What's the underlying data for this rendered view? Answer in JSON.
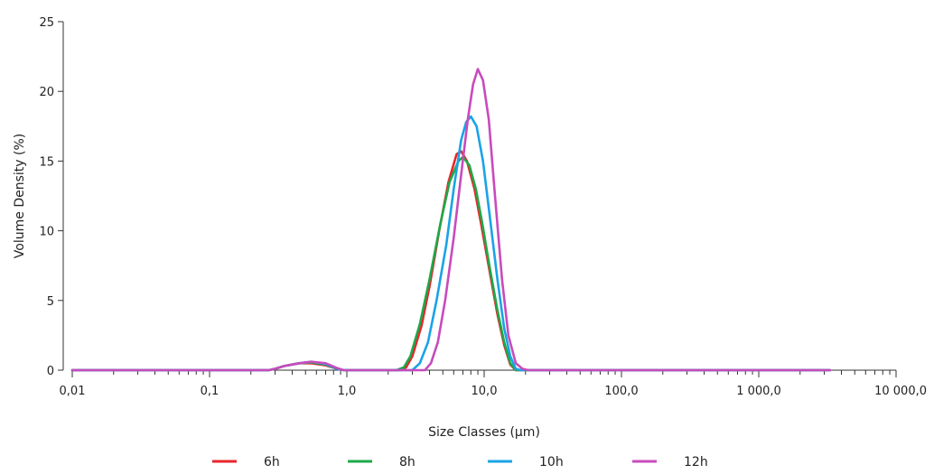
{
  "chart_data": {
    "type": "line",
    "xlabel": "Size Classes (µm)",
    "ylabel": "Volume Density (%)",
    "x_scale": "log",
    "xlim": [
      0.01,
      10000
    ],
    "ylim": [
      0,
      25
    ],
    "x_ticks": [
      {
        "value": 0.01,
        "label": "0,01"
      },
      {
        "value": 0.1,
        "label": "0,1"
      },
      {
        "value": 1,
        "label": "1,0"
      },
      {
        "value": 10,
        "label": "10,0"
      },
      {
        "value": 100,
        "label": "100,0"
      },
      {
        "value": 1000,
        "label": "1 000,0"
      },
      {
        "value": 10000,
        "label": "10 000,0"
      }
    ],
    "y_ticks": [
      {
        "value": 0,
        "label": "0"
      },
      {
        "value": 5,
        "label": "5"
      },
      {
        "value": 10,
        "label": "10"
      },
      {
        "value": 15,
        "label": "15"
      },
      {
        "value": 20,
        "label": "20"
      },
      {
        "value": 25,
        "label": "25"
      }
    ],
    "grid": false,
    "legend_position": "bottom",
    "series": [
      {
        "name": "6h",
        "color": "#e8262b",
        "points": [
          [
            0.01,
            0
          ],
          [
            0.27,
            0
          ],
          [
            0.3,
            0.1
          ],
          [
            0.35,
            0.3
          ],
          [
            0.45,
            0.5
          ],
          [
            0.55,
            0.5
          ],
          [
            0.7,
            0.35
          ],
          [
            0.85,
            0.1
          ],
          [
            0.95,
            0
          ],
          [
            2.4,
            0
          ],
          [
            2.7,
            0.2
          ],
          [
            3.0,
            1.0
          ],
          [
            3.5,
            3.2
          ],
          [
            4.0,
            6.0
          ],
          [
            4.7,
            10.0
          ],
          [
            5.5,
            13.5
          ],
          [
            6.3,
            15.5
          ],
          [
            6.8,
            15.7
          ],
          [
            7.5,
            15.0
          ],
          [
            8.5,
            13.0
          ],
          [
            9.5,
            10.5
          ],
          [
            11,
            7.0
          ],
          [
            12.5,
            4.0
          ],
          [
            14,
            1.8
          ],
          [
            15.5,
            0.4
          ],
          [
            17,
            0
          ],
          [
            3300,
            0
          ]
        ]
      },
      {
        "name": "8h",
        "color": "#1ea84a",
        "points": [
          [
            0.01,
            0
          ],
          [
            0.27,
            0
          ],
          [
            0.3,
            0.1
          ],
          [
            0.35,
            0.3
          ],
          [
            0.45,
            0.5
          ],
          [
            0.55,
            0.55
          ],
          [
            0.7,
            0.4
          ],
          [
            0.85,
            0.1
          ],
          [
            0.95,
            0
          ],
          [
            2.3,
            0
          ],
          [
            2.6,
            0.2
          ],
          [
            2.9,
            1.0
          ],
          [
            3.4,
            3.3
          ],
          [
            4.0,
            6.5
          ],
          [
            4.8,
            10.5
          ],
          [
            5.6,
            13.5
          ],
          [
            6.5,
            15.0
          ],
          [
            7.0,
            15.3
          ],
          [
            7.8,
            14.7
          ],
          [
            8.7,
            13.0
          ],
          [
            9.7,
            10.5
          ],
          [
            11,
            7.3
          ],
          [
            12.5,
            4.3
          ],
          [
            14,
            2.0
          ],
          [
            15.5,
            0.5
          ],
          [
            17,
            0
          ],
          [
            3300,
            0
          ]
        ]
      },
      {
        "name": "10h",
        "color": "#1aa3e6",
        "points": [
          [
            0.01,
            0
          ],
          [
            0.27,
            0
          ],
          [
            0.3,
            0.1
          ],
          [
            0.35,
            0.3
          ],
          [
            0.45,
            0.5
          ],
          [
            0.55,
            0.6
          ],
          [
            0.7,
            0.45
          ],
          [
            0.85,
            0.1
          ],
          [
            0.95,
            0
          ],
          [
            3.0,
            0
          ],
          [
            3.4,
            0.5
          ],
          [
            3.9,
            2.0
          ],
          [
            4.5,
            5.0
          ],
          [
            5.3,
            9.0
          ],
          [
            6.0,
            13.0
          ],
          [
            6.8,
            16.5
          ],
          [
            7.4,
            17.8
          ],
          [
            8.0,
            18.2
          ],
          [
            8.8,
            17.5
          ],
          [
            9.8,
            15.0
          ],
          [
            11,
            11.0
          ],
          [
            12.5,
            6.5
          ],
          [
            14,
            3.0
          ],
          [
            15.5,
            1.0
          ],
          [
            17,
            0.1
          ],
          [
            18.5,
            0
          ],
          [
            3300,
            0
          ]
        ]
      },
      {
        "name": "12h",
        "color": "#c84bbd",
        "points": [
          [
            0.01,
            0
          ],
          [
            0.27,
            0
          ],
          [
            0.3,
            0.1
          ],
          [
            0.35,
            0.3
          ],
          [
            0.45,
            0.5
          ],
          [
            0.55,
            0.6
          ],
          [
            0.7,
            0.5
          ],
          [
            0.85,
            0.15
          ],
          [
            0.95,
            0
          ],
          [
            3.7,
            0
          ],
          [
            4.1,
            0.5
          ],
          [
            4.6,
            2.0
          ],
          [
            5.2,
            5.0
          ],
          [
            6.0,
            9.5
          ],
          [
            6.8,
            14.0
          ],
          [
            7.6,
            18.0
          ],
          [
            8.3,
            20.5
          ],
          [
            9.0,
            21.6
          ],
          [
            9.8,
            20.8
          ],
          [
            10.8,
            18.0
          ],
          [
            12,
            12.5
          ],
          [
            13.5,
            6.5
          ],
          [
            15,
            2.5
          ],
          [
            17,
            0.5
          ],
          [
            19,
            0.1
          ],
          [
            21,
            0
          ],
          [
            3300,
            0
          ]
        ]
      }
    ]
  }
}
